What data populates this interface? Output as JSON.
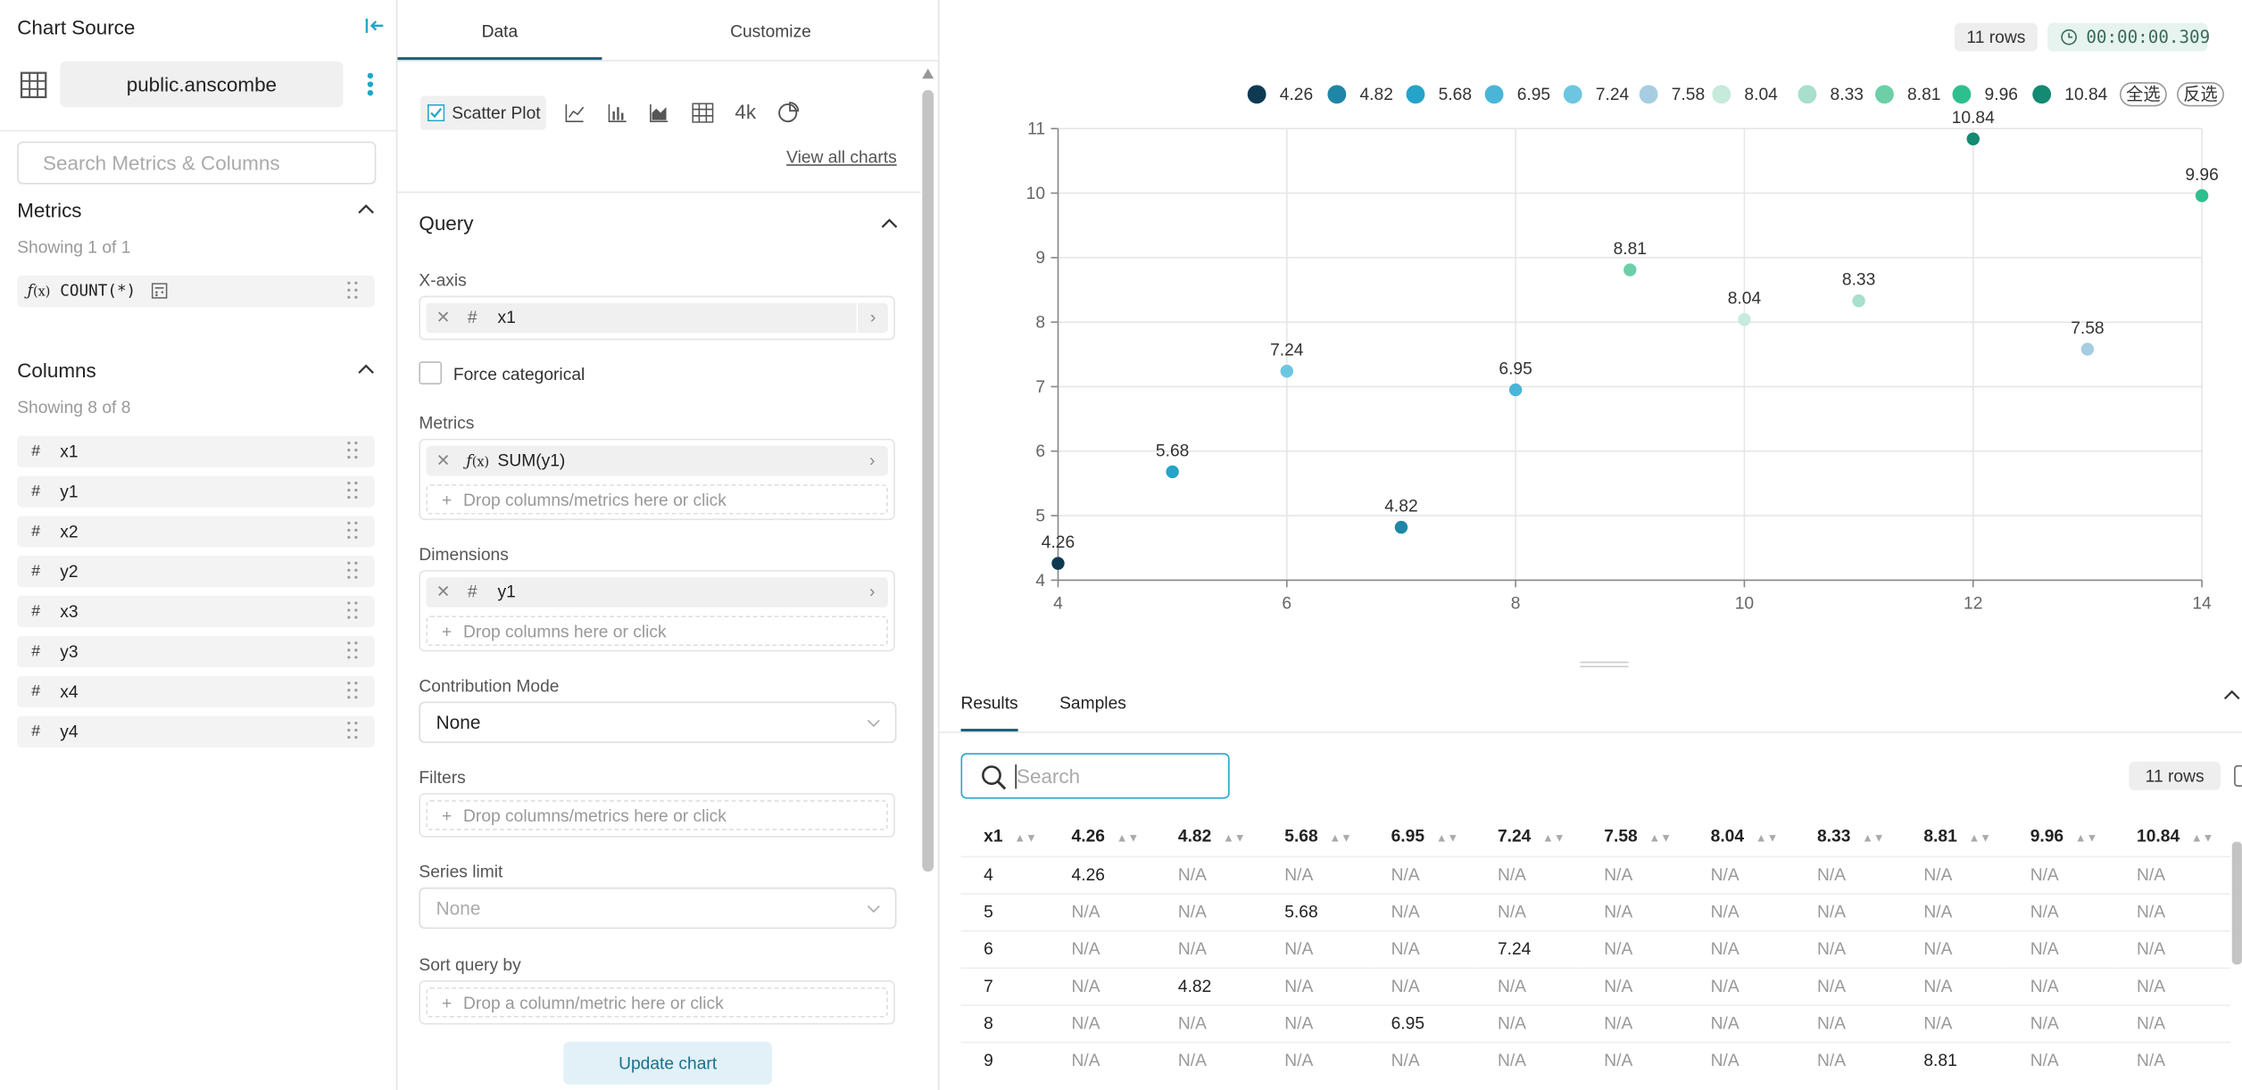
{
  "source": {
    "title": "Chart Source",
    "dataset": "public.anscombe",
    "search_placeholder": "Search Metrics & Columns",
    "metrics_title": "Metrics",
    "metrics_showing": "Showing 1 of 1",
    "metrics": [
      {
        "label": "COUNT(*)",
        "icon": "function-icon"
      }
    ],
    "columns_title": "Columns",
    "columns_showing": "Showing 8 of 8",
    "columns": [
      "x1",
      "y1",
      "x2",
      "y2",
      "x3",
      "y3",
      "x4",
      "y4"
    ]
  },
  "control": {
    "tabs": [
      "Data",
      "Customize"
    ],
    "viz_selected": "Scatter Plot",
    "viz_icons": [
      "line-chart-icon",
      "bar-chart-icon",
      "area-chart-icon",
      "table-icon",
      "big-number-icon",
      "pie-chart-icon"
    ],
    "big_number_label": "4k",
    "view_all": "View all charts",
    "query_title": "Query",
    "xaxis_label": "X-axis",
    "xaxis_value": "x1",
    "force_categorical": "Force categorical",
    "metrics_label": "Metrics",
    "metric_value": "SUM(y1)",
    "drop_metrics": "Drop columns/metrics here or click",
    "dimensions_label": "Dimensions",
    "dimension_value": "y1",
    "drop_columns": "Drop columns here or click",
    "contribution_label": "Contribution Mode",
    "contribution_value": "None",
    "filters_label": "Filters",
    "drop_filters": "Drop columns/metrics here or click",
    "series_limit_label": "Series limit",
    "series_limit_value": "None",
    "sort_label": "Sort query by",
    "drop_sort": "Drop a column/metric here or click",
    "update_button": "Update chart"
  },
  "header": {
    "rows_badge": "11 rows",
    "timer": "00:00:00.309"
  },
  "legend": {
    "items": [
      "4.26",
      "4.82",
      "5.68",
      "6.95",
      "7.24",
      "7.58",
      "8.04",
      "8.33",
      "8.81",
      "9.96",
      "10.84"
    ],
    "select_all": "全选",
    "invert": "反选"
  },
  "chart_data": {
    "type": "scatter",
    "xlim": [
      4,
      14
    ],
    "ylim": [
      4,
      11
    ],
    "xticks": [
      "4",
      "6",
      "8",
      "10",
      "12",
      "14"
    ],
    "yticks": [
      "4",
      "5",
      "6",
      "7",
      "8",
      "9",
      "10",
      "11"
    ],
    "grid": true,
    "legend_position": "top-right",
    "series": [
      {
        "name": "4.26",
        "color": "#0d3a52",
        "x": 4,
        "y": 4.26
      },
      {
        "name": "4.82",
        "color": "#1f86a8",
        "x": 7,
        "y": 4.82
      },
      {
        "name": "5.68",
        "color": "#26a3c8",
        "x": 5,
        "y": 5.68
      },
      {
        "name": "6.95",
        "color": "#49b6d8",
        "x": 8,
        "y": 6.95
      },
      {
        "name": "7.24",
        "color": "#6cc6e2",
        "x": 6,
        "y": 7.24
      },
      {
        "name": "7.58",
        "color": "#a7cde2",
        "x": 13,
        "y": 7.58
      },
      {
        "name": "8.04",
        "color": "#c6eadc",
        "x": 10,
        "y": 8.04
      },
      {
        "name": "8.33",
        "color": "#a8e0cb",
        "x": 11,
        "y": 8.33
      },
      {
        "name": "8.81",
        "color": "#6ccfa8",
        "x": 9,
        "y": 8.81
      },
      {
        "name": "9.96",
        "color": "#2fbf8f",
        "x": 14,
        "y": 9.96
      },
      {
        "name": "10.84",
        "color": "#138a72",
        "x": 12,
        "y": 10.84
      }
    ]
  },
  "results": {
    "tabs": [
      "Results",
      "Samples"
    ],
    "search_placeholder": "Search",
    "rows_badge": "11 rows",
    "headers": [
      "x1",
      "4.26",
      "4.82",
      "5.68",
      "6.95",
      "7.24",
      "7.58",
      "8.04",
      "8.33",
      "8.81",
      "9.96",
      "10.84"
    ],
    "rows": [
      [
        "4",
        "4.26",
        "N/A",
        "N/A",
        "N/A",
        "N/A",
        "N/A",
        "N/A",
        "N/A",
        "N/A",
        "N/A",
        "N/A"
      ],
      [
        "5",
        "N/A",
        "N/A",
        "5.68",
        "N/A",
        "N/A",
        "N/A",
        "N/A",
        "N/A",
        "N/A",
        "N/A",
        "N/A"
      ],
      [
        "6",
        "N/A",
        "N/A",
        "N/A",
        "N/A",
        "7.24",
        "N/A",
        "N/A",
        "N/A",
        "N/A",
        "N/A",
        "N/A"
      ],
      [
        "7",
        "N/A",
        "4.82",
        "N/A",
        "N/A",
        "N/A",
        "N/A",
        "N/A",
        "N/A",
        "N/A",
        "N/A",
        "N/A"
      ],
      [
        "8",
        "N/A",
        "N/A",
        "N/A",
        "6.95",
        "N/A",
        "N/A",
        "N/A",
        "N/A",
        "N/A",
        "N/A",
        "N/A"
      ],
      [
        "9",
        "N/A",
        "N/A",
        "N/A",
        "N/A",
        "N/A",
        "N/A",
        "N/A",
        "N/A",
        "8.81",
        "N/A",
        "N/A"
      ]
    ]
  }
}
